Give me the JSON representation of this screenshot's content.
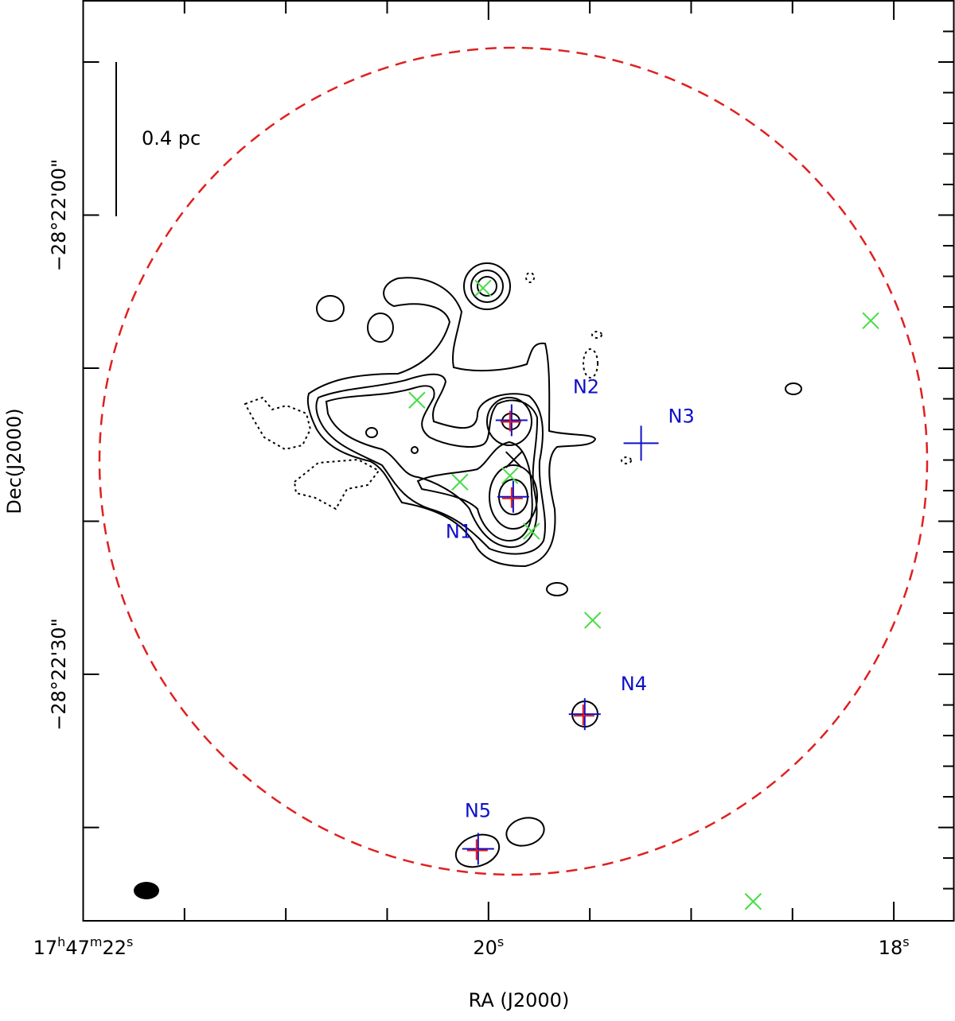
{
  "chart_data": {
    "type": "scatter",
    "x_label": "RA (J2000)",
    "y_label": "Dec(J2000)",
    "scale_bar_label": "0.4 pc",
    "xlim": [
      22,
      17.702
    ],
    "ylim": [
      -46.1,
      14
    ],
    "xticks": [
      {
        "value": 22,
        "label": "17h47m22s"
      },
      {
        "value": 20,
        "label": "20s"
      },
      {
        "value": 18,
        "label": "18s"
      }
    ],
    "x_minor_ticks": [
      21.5,
      21,
      20.5,
      19.5,
      19,
      18.5
    ],
    "yticks": [
      {
        "value": 0,
        "label": "−28°22'00\""
      },
      {
        "value": -30,
        "label": "−28°22'30\""
      }
    ],
    "y_major_unlabeled_ticks": [
      10,
      -10,
      -20,
      -40
    ],
    "y_minor_ticks": [
      12,
      8,
      6,
      4,
      2,
      -2,
      -4,
      -6,
      -8,
      -12,
      -14,
      -16,
      -18,
      -22,
      -24,
      -26,
      -28,
      -32,
      -34,
      -36,
      -38,
      -42,
      -44
    ],
    "sources": {
      "labels": [
        "N1",
        "N2",
        "N3",
        "N4",
        "N5"
      ],
      "x": [
        19.878,
        19.886,
        19.247,
        19.525,
        20.051
      ],
      "y": [
        -18.4,
        -13.4,
        -14.9,
        -32.6,
        -41.4
      ],
      "label_color": "#1010c8",
      "cross_colors": [
        "#1010c8",
        "#e01818"
      ]
    },
    "green_crosses": {
      "x": [
        20.027,
        20.353,
        20.141,
        19.894,
        19.788,
        19.486,
        18.114,
        18.694
      ],
      "y": [
        -4.77,
        -12.09,
        -17.44,
        -17.02,
        -20.65,
        -26.47,
        -6.9,
        -44.84
      ],
      "color": "#44dd44"
    },
    "black_cross": {
      "x": [
        19.875
      ],
      "y": [
        -15.98
      ],
      "color": "#000000"
    }
  }
}
